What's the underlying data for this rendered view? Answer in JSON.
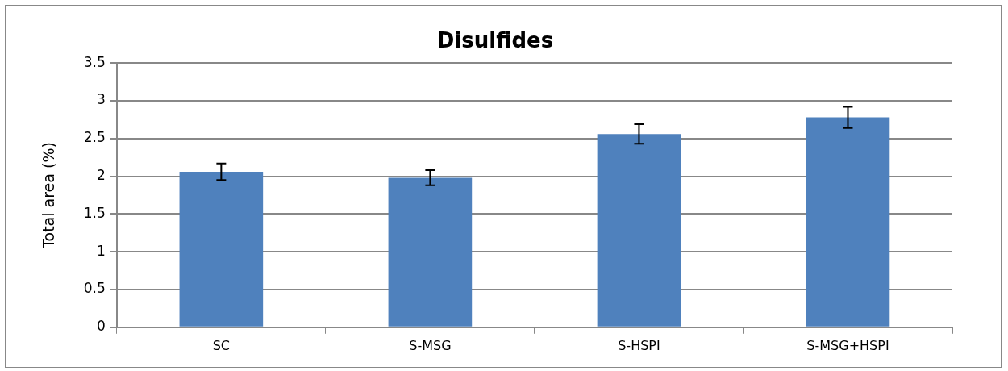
{
  "chart_data": {
    "type": "bar",
    "title": "Disulfides",
    "ylabel": "Total area (%)",
    "categories": [
      "SC",
      "S-MSG",
      "S-HSPI",
      "S-MSG+HSPI"
    ],
    "values": [
      2.06,
      1.98,
      2.56,
      2.78
    ],
    "errors": [
      0.11,
      0.1,
      0.13,
      0.14
    ],
    "color": "#4f81bd",
    "ylim": [
      0,
      3.5
    ],
    "yticks": [
      0,
      0.5,
      1,
      1.5,
      2,
      2.5,
      3,
      3.5
    ],
    "grid": "y",
    "legend": false
  }
}
